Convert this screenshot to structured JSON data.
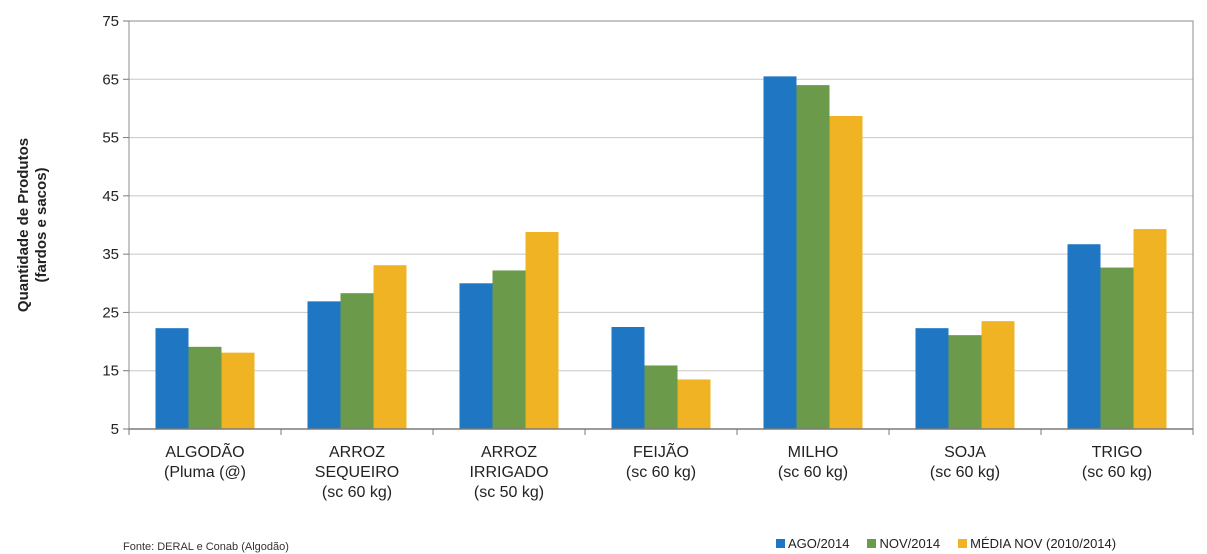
{
  "chart_data": {
    "type": "bar",
    "ylabel": "Quantidade de Produtos\n(fardos e sacos)",
    "ylim": [
      5,
      75
    ],
    "yticks": [
      5,
      15,
      25,
      35,
      45,
      55,
      65,
      75
    ],
    "grid": true,
    "legend_position": "bottom-right",
    "categories": [
      "ALGODÃO\n(Pluma (@)",
      "ARROZ\nSEQUEIRO\n(sc 60 kg)",
      "ARROZ\nIRRIGADO\n(sc 50 kg)",
      "FEIJÃO\n(sc 60 kg)",
      "MILHO\n(sc 60 kg)",
      "SOJA\n(sc 60 kg)",
      "TRIGO\n(sc 60 kg)"
    ],
    "series": [
      {
        "name": "AGO/2014",
        "color": "#1f77c4",
        "values": [
          22.3,
          26.9,
          30.0,
          22.5,
          65.5,
          22.3,
          36.7
        ]
      },
      {
        "name": "NOV/2014",
        "color": "#6a9a4a",
        "values": [
          19.1,
          28.3,
          32.2,
          15.9,
          64.0,
          21.1,
          32.7
        ]
      },
      {
        "name": "MÉDIA NOV (2010/2014)",
        "color": "#f0b323",
        "values": [
          18.1,
          33.1,
          38.8,
          13.5,
          58.7,
          23.5,
          39.3
        ]
      }
    ]
  },
  "footer": {
    "source": "Fonte: DERAL e Conab (Algodão)"
  }
}
